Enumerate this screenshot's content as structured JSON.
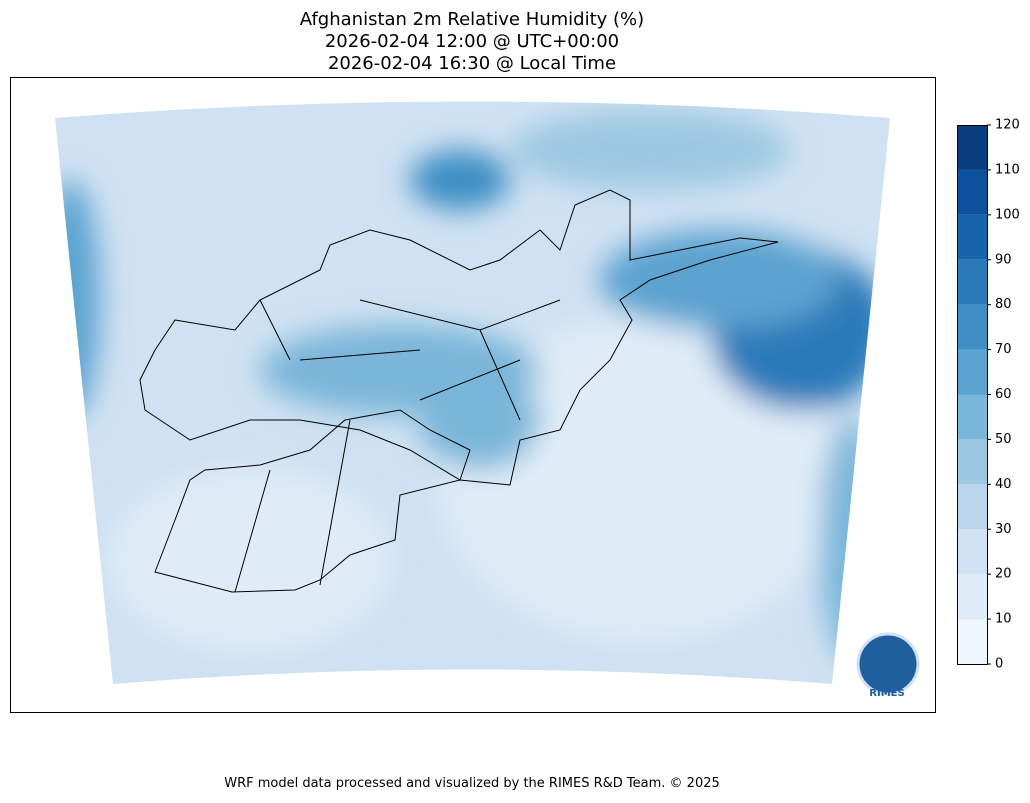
{
  "title": [
    "Afghanistan 2m Relative Humidity (%)",
    "2026-02-04 12:00 @ UTC+00:00",
    "2026-02-04 16:30 @ Local Time"
  ],
  "colorbar": {
    "ticks": [
      0,
      10,
      20,
      30,
      40,
      50,
      60,
      70,
      80,
      90,
      100,
      110,
      120
    ],
    "colors": [
      "#eff6fc",
      "#dfecf7",
      "#cfe1f2",
      "#b9d6ec",
      "#9cc9e1",
      "#7ab6d9",
      "#5ba3d0",
      "#3e8ec4",
      "#2a7ab9",
      "#1764ab",
      "#0b519c",
      "#083d7f"
    ]
  },
  "logo": "RIMES",
  "footer": "WRF model data processed and visualized by the RIMES R&D Team. © 2025"
}
